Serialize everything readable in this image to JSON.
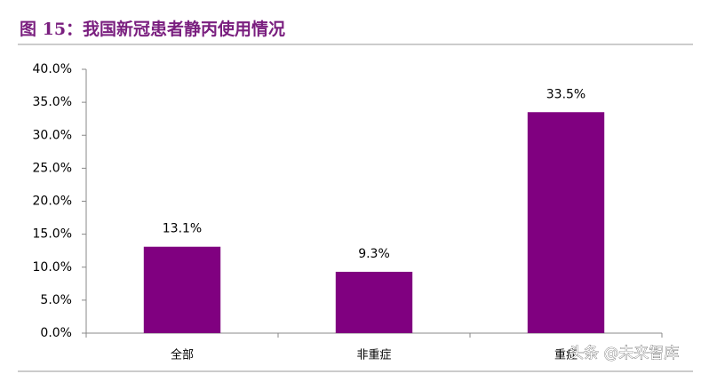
{
  "chart_data": {
    "type": "bar",
    "title": "图 15：我国新冠患者静丙使用情况",
    "categories": [
      "全部",
      "非重症",
      "重症"
    ],
    "values": [
      13.1,
      9.3,
      33.5
    ],
    "value_labels": [
      "13.1%",
      "9.3%",
      "33.5%"
    ],
    "color": "#800080",
    "ylim": [
      0,
      40
    ],
    "yticks": [
      {
        "value": 0,
        "label": "0.0%"
      },
      {
        "value": 5,
        "label": "5.0%"
      },
      {
        "value": 10,
        "label": "10.0%"
      },
      {
        "value": 15,
        "label": "15.0%"
      },
      {
        "value": 20,
        "label": "20.0%"
      },
      {
        "value": 25,
        "label": "25.0%"
      },
      {
        "value": 30,
        "label": "30.0%"
      },
      {
        "value": 35,
        "label": "35.0%"
      },
      {
        "value": 40,
        "label": "40.0%"
      }
    ],
    "grid": false
  },
  "watermark": "头条 @未来智库"
}
